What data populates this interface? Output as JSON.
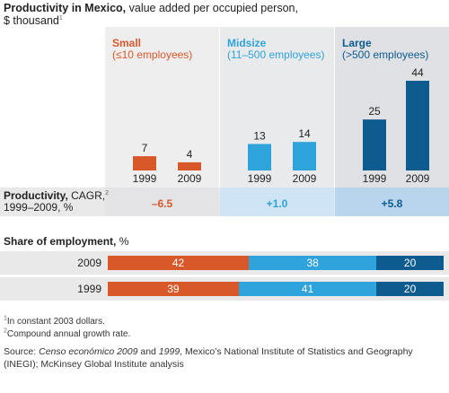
{
  "title": {
    "bold": "Productivity in Mexico,",
    "rest": " value added per occupied person,",
    "line2": "$ thousand",
    "line2_sup": "1"
  },
  "segments": [
    {
      "name": "Small",
      "sub": "(≤10 employees)",
      "color": "#d8582a",
      "bg": "#eeeeef",
      "cagr": "–6.5",
      "cagr_bg": "#e4e4e6"
    },
    {
      "name": "Midsize",
      "sub": "(11–500 employees)",
      "color": "#2ea3dc",
      "bg": "#e9eaeb",
      "cagr": "+1.0",
      "cagr_bg": "#cfe4f4"
    },
    {
      "name": "Large",
      "sub": "(>500 employees)",
      "color": "#0d5b8f",
      "bg": "#dfe1e4",
      "cagr": "+5.8",
      "cagr_bg": "#b9d5ee"
    }
  ],
  "cagr_label": {
    "bold": "Productivity,",
    "rest": " CAGR,",
    "sup": "2",
    "line2": "1999–2009, %"
  },
  "chart_data": [
    {
      "type": "bar",
      "title": "Productivity in Mexico, value added per occupied person, $ thousand",
      "categories": [
        "Small 1999",
        "Small 2009",
        "Midsize 1999",
        "Midsize 2009",
        "Large 1999",
        "Large 2009"
      ],
      "x_labels": [
        "1999",
        "2009",
        "1999",
        "2009",
        "1999",
        "2009"
      ],
      "values": [
        7,
        4,
        13,
        14,
        25,
        44
      ],
      "value_labels": [
        "7",
        "4",
        "13",
        "14",
        "25",
        "44"
      ],
      "groups": [
        "Small",
        "Small",
        "Midsize",
        "Midsize",
        "Large",
        "Large"
      ],
      "ylim": [
        0,
        44
      ]
    },
    {
      "type": "bar",
      "orientation": "horizontal-stacked",
      "title": "Share of employment, %",
      "categories": [
        "2009",
        "1999"
      ],
      "series": [
        {
          "name": "Small",
          "values": [
            42,
            39
          ]
        },
        {
          "name": "Midsize",
          "values": [
            38,
            41
          ]
        },
        {
          "name": "Large",
          "values": [
            20,
            20
          ]
        }
      ],
      "xlim": [
        0,
        100
      ]
    }
  ],
  "share": {
    "title_bold": "Share of employment,",
    "title_rest": " %"
  },
  "footnotes": [
    {
      "sup": "1",
      "text": "In constant 2003 dollars."
    },
    {
      "sup": "2",
      "text": "Compound annual growth rate."
    }
  ],
  "source": {
    "prefix": "Source: ",
    "italic1": "Censo económico 2009",
    "mid": " and ",
    "italic2": "1999",
    "rest": ", Mexico’s National Institute of Statistics and Geography (INEGI); McKinsey Global Institute analysis"
  }
}
